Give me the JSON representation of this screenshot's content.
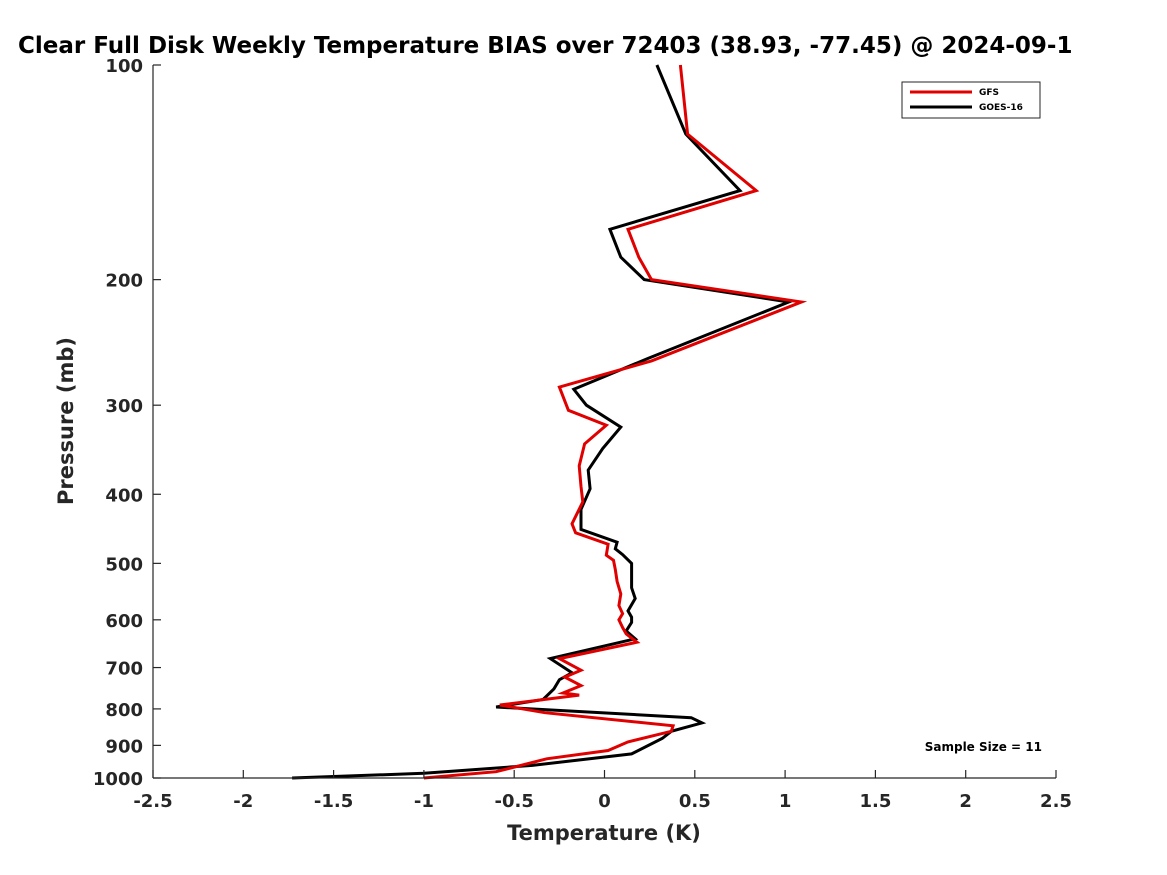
{
  "chart_data": {
    "type": "line",
    "title": "Clear Full Disk Weekly Temperature BIAS over 72403 (38.93, -77.45) @ 2024-09-1",
    "xlabel": "Temperature (K)",
    "ylabel": "Pressure (mb)",
    "xlim": [
      -2.5,
      2.5
    ],
    "ylim": [
      1000,
      100
    ],
    "yscale": "log",
    "y_reversed": true,
    "xticks": [
      -2.5,
      -2,
      -1.5,
      -1,
      -0.5,
      0,
      0.5,
      1,
      1.5,
      2,
      2.5
    ],
    "xtick_labels": [
      "-2.5",
      "-2",
      "-1.5",
      "-1",
      "-0.5",
      "0",
      "0.5",
      "1",
      "1.5",
      "2",
      "2.5"
    ],
    "yticks": [
      100,
      200,
      300,
      400,
      500,
      600,
      700,
      800,
      900,
      1000
    ],
    "ytick_labels": [
      "100",
      "200",
      "300",
      "400",
      "500",
      "600",
      "700",
      "800",
      "900",
      "1000"
    ],
    "grid": false,
    "legend_position": "top-right",
    "annotation": "Sample Size = 11",
    "series": [
      {
        "name": "GFS",
        "color": "#e00000",
        "points": [
          [
            0.42,
            100
          ],
          [
            0.46,
            125
          ],
          [
            0.84,
            150
          ],
          [
            0.13,
            170
          ],
          [
            0.19,
            186
          ],
          [
            0.26,
            200
          ],
          [
            1.09,
            215
          ],
          [
            0.26,
            260
          ],
          [
            -0.25,
            283
          ],
          [
            -0.2,
            305
          ],
          [
            0.01,
            320
          ],
          [
            -0.11,
            340
          ],
          [
            -0.14,
            365
          ],
          [
            -0.13,
            390
          ],
          [
            -0.12,
            410
          ],
          [
            -0.18,
            440
          ],
          [
            -0.16,
            453
          ],
          [
            0.02,
            470
          ],
          [
            0.01,
            487
          ],
          [
            0.05,
            495
          ],
          [
            0.06,
            510
          ],
          [
            0.07,
            530
          ],
          [
            0.09,
            552
          ],
          [
            0.08,
            573
          ],
          [
            0.1,
            588
          ],
          [
            0.08,
            600
          ],
          [
            0.1,
            615
          ],
          [
            0.12,
            628
          ],
          [
            0.18,
            645
          ],
          [
            -0.25,
            680
          ],
          [
            -0.13,
            706
          ],
          [
            -0.22,
            722
          ],
          [
            -0.13,
            742
          ],
          [
            -0.23,
            760
          ],
          [
            -0.14,
            765
          ],
          [
            -0.58,
            790
          ],
          [
            -0.33,
            810
          ],
          [
            0.38,
            845
          ],
          [
            0.37,
            860
          ],
          [
            0.13,
            890
          ],
          [
            0.02,
            915
          ],
          [
            -0.32,
            940
          ],
          [
            -0.6,
            980
          ],
          [
            -1.0,
            1000
          ]
        ]
      },
      {
        "name": "GOES-16",
        "color": "#000000",
        "points": [
          [
            0.29,
            100
          ],
          [
            0.45,
            125
          ],
          [
            0.75,
            150
          ],
          [
            0.03,
            170
          ],
          [
            0.09,
            186
          ],
          [
            0.22,
            200
          ],
          [
            1.02,
            215
          ],
          [
            0.24,
            258
          ],
          [
            -0.17,
            285
          ],
          [
            -0.1,
            300
          ],
          [
            0.09,
            322
          ],
          [
            -0.01,
            345
          ],
          [
            -0.09,
            370
          ],
          [
            -0.08,
            393
          ],
          [
            -0.13,
            420
          ],
          [
            -0.13,
            448
          ],
          [
            0.07,
            467
          ],
          [
            0.06,
            477
          ],
          [
            0.1,
            486
          ],
          [
            0.15,
            500
          ],
          [
            0.15,
            523
          ],
          [
            0.15,
            541
          ],
          [
            0.17,
            560
          ],
          [
            0.13,
            583
          ],
          [
            0.15,
            595
          ],
          [
            0.15,
            605
          ],
          [
            0.12,
            622
          ],
          [
            0.17,
            638
          ],
          [
            -0.3,
            680
          ],
          [
            -0.18,
            712
          ],
          [
            -0.25,
            728
          ],
          [
            -0.28,
            750
          ],
          [
            -0.34,
            776
          ],
          [
            -0.6,
            795
          ],
          [
            0.48,
            823
          ],
          [
            0.54,
            837
          ],
          [
            0.37,
            860
          ],
          [
            0.32,
            880
          ],
          [
            0.15,
            925
          ],
          [
            -0.4,
            960
          ],
          [
            -1.0,
            985
          ],
          [
            -1.73,
            1000
          ]
        ]
      }
    ]
  }
}
